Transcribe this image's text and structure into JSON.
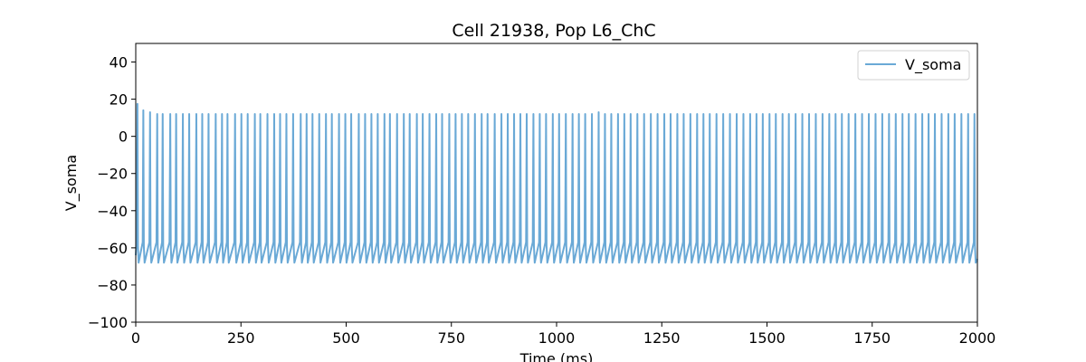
{
  "chart_data": {
    "type": "line",
    "title": "Cell 21938, Pop L6_ChC",
    "xlabel": "Time (ms)",
    "ylabel": "V_soma",
    "xlim": [
      0,
      2000
    ],
    "ylim": [
      -100,
      50
    ],
    "xticks": [
      0,
      250,
      500,
      750,
      1000,
      1250,
      1500,
      1750,
      2000
    ],
    "yticks": [
      -100,
      -80,
      -60,
      -40,
      -20,
      0,
      20,
      40
    ],
    "grid": false,
    "legend_position": "upper-right",
    "series": [
      {
        "name": "V_soma",
        "color": "#6aa9d6",
        "spike_times_ms": [
          4,
          18,
          34,
          51,
          64,
          82,
          96,
          112,
          127,
          144,
          158,
          173,
          190,
          205,
          218,
          236,
          251,
          266,
          283,
          296,
          313,
          329,
          343,
          358,
          374,
          392,
          406,
          420,
          436,
          452,
          466,
          483,
          498,
          512,
          530,
          545,
          560,
          575,
          591,
          604,
          621,
          637,
          651,
          668,
          682,
          698,
          714,
          728,
          745,
          760,
          775,
          790,
          806,
          822,
          836,
          853,
          869,
          884,
          899,
          914,
          929,
          945,
          960,
          975,
          991,
          1006,
          1022,
          1038,
          1053,
          1068,
          1084,
          1100,
          1115,
          1130,
          1146,
          1161,
          1176,
          1192,
          1208,
          1224,
          1240,
          1256,
          1271,
          1287,
          1302,
          1318,
          1334,
          1349,
          1364,
          1380,
          1396,
          1412,
          1428,
          1444,
          1460,
          1475,
          1490,
          1506,
          1521,
          1537,
          1552,
          1568,
          1584,
          1600,
          1616,
          1632,
          1648,
          1663,
          1678,
          1694,
          1710,
          1726,
          1742,
          1758,
          1774,
          1790,
          1806,
          1822,
          1837,
          1853,
          1869,
          1884,
          1899,
          1915,
          1931,
          1946,
          1962,
          1978,
          1993
        ],
        "spike_peaks_mV": [
          17.5,
          14,
          13,
          12,
          12,
          12,
          12,
          12,
          12,
          12,
          12,
          12,
          12,
          12,
          12,
          12,
          12,
          12,
          12,
          12,
          12,
          12,
          12,
          12,
          12,
          12,
          12,
          12,
          12,
          12,
          12,
          12,
          12,
          12,
          12,
          12,
          12,
          12,
          12,
          12,
          12,
          12,
          12,
          12,
          12,
          12,
          12,
          12,
          12,
          12,
          12,
          12,
          12,
          12,
          12,
          12,
          12,
          12,
          12,
          12,
          12,
          12,
          12,
          12,
          12,
          12,
          12,
          12,
          12,
          12,
          12,
          13,
          12,
          12,
          12,
          12,
          12,
          12,
          12,
          12,
          12,
          12,
          12,
          12,
          12,
          12,
          12,
          12,
          12,
          12,
          12,
          12,
          12,
          12,
          12,
          12,
          12,
          12,
          12,
          12,
          12,
          12,
          12,
          12,
          12,
          12,
          12,
          12,
          12,
          12,
          12,
          12,
          12,
          12,
          12,
          12,
          12,
          12,
          12,
          12,
          12,
          12,
          12,
          12,
          12,
          12,
          12,
          12,
          12
        ],
        "trough_mV": -68,
        "pre_spike_mV": -57
      }
    ]
  }
}
